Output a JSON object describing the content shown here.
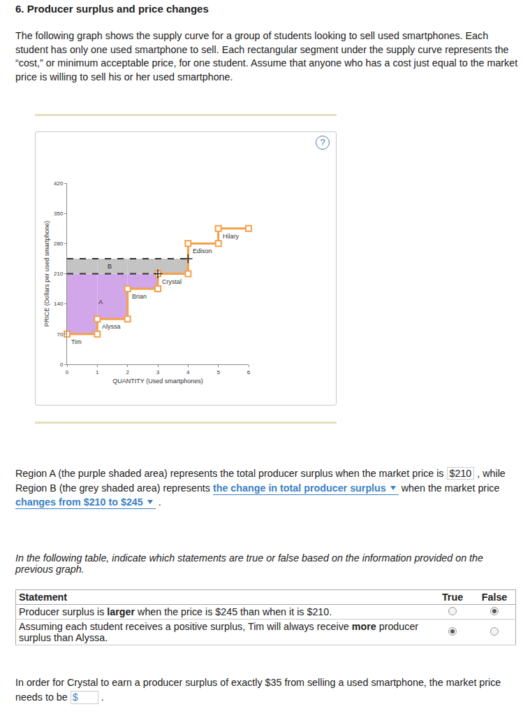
{
  "header": {
    "title": "6. Producer surplus and price changes"
  },
  "intro": "The following graph shows the supply curve for a group of students looking to sell used smartphones. Each student has only one used smartphone to sell. Each rectangular segment under the supply curve represents the “cost,” or minimum acceptable price, for one student. Assume that anyone who has a cost just equal to the market price is willing to sell his or her used smartphone.",
  "chart_data": {
    "type": "step",
    "x_label": "QUANTITY (Used smartphones)",
    "y_label": "PRICE (Dollars per used smartphone)",
    "categories": [
      "Tim",
      "Alyssa",
      "Brian",
      "Crystal",
      "Edison",
      "Hilary"
    ],
    "values": [
      70,
      105,
      175,
      210,
      280,
      315
    ],
    "color": "#f5a04a",
    "marker": "square",
    "xlim": [
      0,
      6
    ],
    "ylim": [
      0,
      420
    ],
    "xticks": [
      0,
      1,
      2,
      3,
      4,
      5,
      6
    ],
    "yticks": [
      0,
      70,
      140,
      210,
      280,
      350,
      420
    ],
    "grid": false,
    "regions": [
      {
        "label": "A",
        "price": 210,
        "color": "#d2a7ea",
        "line_style": "dashed"
      },
      {
        "label": "B",
        "from": 210,
        "to": 245,
        "color": "#c4c4c4",
        "line_style": "dashed"
      }
    ],
    "help_icon": "?"
  },
  "sentence": [
    {
      "text": "Region A (the purple shaded area) represents the total producer surplus when the market price is "
    },
    {
      "input": "$210"
    },
    {
      "text": " , while Region B (the grey shaded area) represents "
    },
    {
      "dropdown": "the change in total producer surplus"
    },
    {
      "text": " when the market price "
    },
    {
      "dropdown": "changes from $210 to $245"
    },
    {
      "text": " ."
    }
  ],
  "table_intro": "In the following table, indicate which statements are true or false based on the information provided on the previous graph.",
  "table": {
    "header": [
      "Statement",
      "True",
      "False"
    ],
    "rows": [
      {
        "parts": [
          "Producer surplus is ",
          "larger",
          " when the price is $245 than when it is $210."
        ],
        "answer": "False"
      },
      {
        "parts": [
          "Assuming each student receives a positive surplus, Tim will always receive ",
          "more",
          " producer surplus than Alyssa."
        ],
        "answer": "True"
      }
    ]
  },
  "final": {
    "text": "In order for Crystal to earn a producer surplus of exactly $35 from selling a used smartphone, the market price needs to be ",
    "prefix": "$",
    "after": " ."
  }
}
